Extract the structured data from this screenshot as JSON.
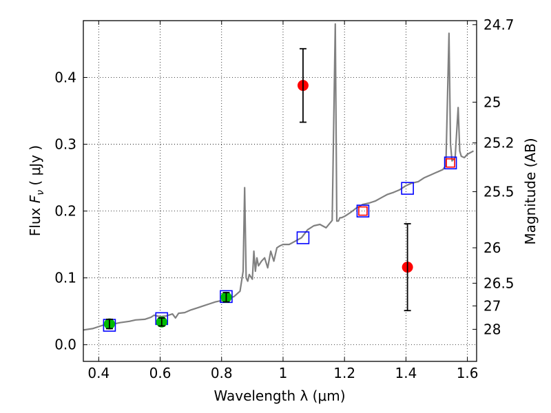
{
  "chart_data": {
    "type": "scatter",
    "title": "",
    "xlabel": "Wavelength  λ (μm)",
    "ylabel": "Flux  F_ν  ( μJy )",
    "ylabel_parts": {
      "prefix": "Flux ",
      "symbol": "F",
      "subscript": "ν",
      "unit": "  ( μJy )"
    },
    "ylabel_right": "Magnitude (AB)",
    "xlim": [
      0.35,
      1.63
    ],
    "ylim": [
      -0.025,
      0.485
    ],
    "grid": true,
    "x_ticks": [
      {
        "value": 0.4,
        "label": "0.4"
      },
      {
        "value": 0.6,
        "label": "0.6"
      },
      {
        "value": 0.8,
        "label": "0.8"
      },
      {
        "value": 1.0,
        "label": "1"
      },
      {
        "value": 1.2,
        "label": "1.2"
      },
      {
        "value": 1.4,
        "label": "1.4"
      },
      {
        "value": 1.6,
        "label": "1.6"
      }
    ],
    "y_ticks": [
      {
        "value": 0.0,
        "label": "0.0"
      },
      {
        "value": 0.1,
        "label": "0.1"
      },
      {
        "value": 0.2,
        "label": "0.2"
      },
      {
        "value": 0.3,
        "label": "0.3"
      },
      {
        "value": 0.4,
        "label": "0.4"
      }
    ],
    "right_ticks": [
      {
        "flux": 0.479,
        "label": "24.7"
      },
      {
        "flux": 0.363,
        "label": "25"
      },
      {
        "flux": 0.302,
        "label": "25.2"
      },
      {
        "flux": 0.229,
        "label": "25.5"
      },
      {
        "flux": 0.145,
        "label": "26"
      },
      {
        "flux": 0.092,
        "label": "26.5"
      },
      {
        "flux": 0.058,
        "label": "27"
      },
      {
        "flux": 0.023,
        "label": "28"
      }
    ],
    "series": [
      {
        "kind": "line",
        "color": "#808080",
        "x": [
          0.35,
          0.38,
          0.4,
          0.42,
          0.45,
          0.47,
          0.5,
          0.52,
          0.55,
          0.57,
          0.58,
          0.6,
          0.62,
          0.64,
          0.65,
          0.66,
          0.68,
          0.7,
          0.72,
          0.74,
          0.76,
          0.78,
          0.8,
          0.82,
          0.84,
          0.86,
          0.87,
          0.875,
          0.88,
          0.885,
          0.89,
          0.9,
          0.905,
          0.91,
          0.915,
          0.92,
          0.93,
          0.94,
          0.95,
          0.96,
          0.97,
          0.98,
          0.99,
          1.0,
          1.02,
          1.04,
          1.06,
          1.08,
          1.1,
          1.12,
          1.14,
          1.16,
          1.17,
          1.175,
          1.18,
          1.185,
          1.19,
          1.2,
          1.22,
          1.24,
          1.26,
          1.28,
          1.3,
          1.32,
          1.34,
          1.36,
          1.38,
          1.4,
          1.42,
          1.44,
          1.46,
          1.48,
          1.5,
          1.52,
          1.53,
          1.54,
          1.545,
          1.55,
          1.56,
          1.57,
          1.575,
          1.58,
          1.59,
          1.6,
          1.62
        ],
        "y": [
          0.022,
          0.024,
          0.027,
          0.03,
          0.031,
          0.033,
          0.035,
          0.037,
          0.038,
          0.041,
          0.044,
          0.042,
          0.043,
          0.046,
          0.04,
          0.047,
          0.048,
          0.052,
          0.055,
          0.058,
          0.061,
          0.064,
          0.066,
          0.069,
          0.072,
          0.08,
          0.11,
          0.235,
          0.1,
          0.095,
          0.105,
          0.098,
          0.14,
          0.11,
          0.13,
          0.118,
          0.125,
          0.13,
          0.115,
          0.14,
          0.125,
          0.145,
          0.148,
          0.15,
          0.15,
          0.155,
          0.16,
          0.172,
          0.178,
          0.18,
          0.175,
          0.186,
          0.48,
          0.185,
          0.185,
          0.19,
          0.19,
          0.192,
          0.198,
          0.205,
          0.21,
          0.212,
          0.215,
          0.22,
          0.225,
          0.228,
          0.232,
          0.238,
          0.242,
          0.244,
          0.25,
          0.254,
          0.258,
          0.262,
          0.268,
          0.466,
          0.3,
          0.275,
          0.28,
          0.355,
          0.29,
          0.282,
          0.28,
          0.285,
          0.29
        ]
      },
      {
        "kind": "open-square",
        "name": "",
        "color": "#0000ff",
        "x": [
          0.435,
          0.605,
          0.815,
          1.065,
          1.26,
          1.405,
          1.545
        ],
        "y": [
          0.029,
          0.039,
          0.072,
          0.16,
          0.2,
          0.234,
          0.272
        ]
      },
      {
        "kind": "open-square-small",
        "name": "",
        "color": "#ff0000",
        "x": [
          1.26,
          1.545
        ],
        "y": [
          0.2,
          0.272
        ]
      },
      {
        "kind": "point-with-errorbar",
        "name": "",
        "color": "#00bb00",
        "x": [
          0.435,
          0.605,
          0.815
        ],
        "y": [
          0.031,
          0.034,
          0.071
        ],
        "yerr": [
          0.007,
          0.006,
          0.007
        ]
      },
      {
        "kind": "point-with-errorbar",
        "name": "",
        "color": "#ff0000",
        "x": [
          1.065,
          1.405
        ],
        "y": [
          0.388,
          0.116
        ],
        "yerr": [
          0.055,
          0.065
        ]
      }
    ]
  }
}
